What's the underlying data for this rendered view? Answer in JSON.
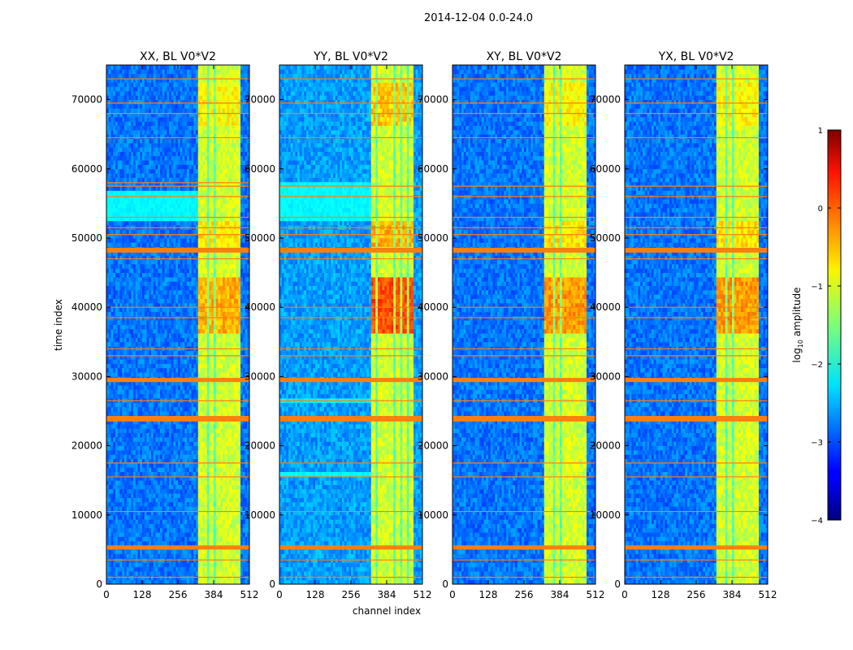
{
  "figure_title": "2014-12-04 0.0-24.0",
  "chart_data": [
    {
      "type": "heatmap",
      "title": "XX, BL V0*V2",
      "xlabel": "channel index",
      "ylabel": "time index",
      "xlim": [
        0,
        512
      ],
      "ylim": [
        0,
        75000
      ],
      "xticks": [
        0,
        128,
        256,
        384,
        512
      ],
      "yticks": [
        0,
        10000,
        20000,
        30000,
        40000,
        50000,
        60000,
        70000
      ],
      "baseline": -2.8,
      "active_band": [
        325,
        480
      ],
      "band_stripes": [
        [
          325,
          340
        ],
        [
          348,
          362
        ],
        [
          368,
          386
        ],
        [
          392,
          408
        ],
        [
          412,
          428
        ],
        [
          436,
          452
        ],
        [
          460,
          478
        ]
      ],
      "rfi_bands": [
        [
          5000,
          5600
        ],
        [
          23500,
          24300
        ],
        [
          29200,
          29800
        ],
        [
          47900,
          48600
        ]
      ],
      "rfi_lines": [
        1000,
        3500,
        10500,
        15500,
        17500,
        26500,
        33000,
        34000,
        38500,
        40000,
        47000,
        50500,
        51500,
        53000,
        56000,
        57500,
        58000,
        64500,
        68000,
        69500,
        73000
      ],
      "dim_bands": [
        [
          52500,
          57000
        ]
      ],
      "hot_bands": [
        [
          36000,
          44500,
          0.5
        ],
        [
          49000,
          52500,
          0.3
        ],
        [
          66000,
          72500,
          0.2
        ]
      ]
    },
    {
      "type": "heatmap",
      "title": "YY, BL V0*V2",
      "xlabel": "channel index",
      "ylabel": "",
      "xlim": [
        0,
        512
      ],
      "ylim": [
        0,
        75000
      ],
      "xticks": [
        0,
        128,
        256,
        384,
        512
      ],
      "yticks": [
        0,
        10000,
        20000,
        30000,
        40000,
        50000,
        60000,
        70000
      ],
      "baseline": -2.6,
      "active_band": [
        325,
        480
      ],
      "band_stripes": [
        [
          325,
          342
        ],
        [
          350,
          364
        ],
        [
          370,
          388
        ],
        [
          394,
          410
        ],
        [
          414,
          430
        ],
        [
          438,
          454
        ],
        [
          462,
          478
        ]
      ],
      "rfi_bands": [
        [
          5000,
          5600
        ],
        [
          23500,
          24300
        ],
        [
          29200,
          29800
        ],
        [
          47900,
          48600
        ]
      ],
      "rfi_lines": [
        1000,
        3500,
        10500,
        15500,
        17500,
        26500,
        33000,
        34000,
        38500,
        40000,
        47000,
        50500,
        51500,
        53000,
        56000,
        57500,
        64500,
        68000,
        69500,
        73000
      ],
      "dim_bands": [
        [
          52500,
          58000
        ],
        [
          26000,
          27000
        ],
        [
          15500,
          16500
        ]
      ],
      "hot_bands": [
        [
          36000,
          44500,
          0.9
        ],
        [
          49000,
          52500,
          0.5
        ],
        [
          66000,
          72500,
          0.4
        ]
      ]
    },
    {
      "type": "heatmap",
      "title": "XY, BL V0*V2",
      "xlabel": "",
      "ylabel": "",
      "xlim": [
        0,
        512
      ],
      "ylim": [
        0,
        75000
      ],
      "xticks": [
        0,
        128,
        256,
        384,
        512
      ],
      "yticks": [
        0,
        10000,
        20000,
        30000,
        40000,
        50000,
        60000,
        70000
      ],
      "baseline": -2.8,
      "active_band": [
        325,
        480
      ],
      "band_stripes": [
        [
          325,
          340
        ],
        [
          348,
          362
        ],
        [
          368,
          386
        ],
        [
          392,
          408
        ],
        [
          412,
          428
        ],
        [
          436,
          452
        ],
        [
          460,
          478
        ]
      ],
      "rfi_bands": [
        [
          5000,
          5600
        ],
        [
          23500,
          24300
        ],
        [
          29200,
          29800
        ],
        [
          47900,
          48600
        ]
      ],
      "rfi_lines": [
        1000,
        3500,
        10500,
        15500,
        17500,
        26500,
        33000,
        34000,
        38500,
        40000,
        47000,
        50500,
        51500,
        53000,
        56000,
        57500,
        64500,
        68000,
        69500,
        73000
      ],
      "dim_bands": [],
      "hot_bands": [
        [
          36000,
          44500,
          0.6
        ],
        [
          49000,
          52500,
          0.3
        ],
        [
          66000,
          72500,
          0.2
        ]
      ]
    },
    {
      "type": "heatmap",
      "title": "YX, BL V0*V2",
      "xlabel": "",
      "ylabel": "",
      "xlim": [
        0,
        512
      ],
      "ylim": [
        0,
        75000
      ],
      "xticks": [
        0,
        128,
        256,
        384,
        512
      ],
      "yticks": [
        0,
        10000,
        20000,
        30000,
        40000,
        50000,
        60000,
        70000
      ],
      "baseline": -2.8,
      "active_band": [
        325,
        480
      ],
      "band_stripes": [
        [
          325,
          340
        ],
        [
          348,
          362
        ],
        [
          368,
          386
        ],
        [
          392,
          408
        ],
        [
          412,
          428
        ],
        [
          436,
          452
        ],
        [
          460,
          478
        ]
      ],
      "rfi_bands": [
        [
          5000,
          5600
        ],
        [
          23500,
          24300
        ],
        [
          29200,
          29800
        ],
        [
          47900,
          48600
        ]
      ],
      "rfi_lines": [
        1000,
        3500,
        10500,
        15500,
        17500,
        26500,
        33000,
        34000,
        38500,
        40000,
        47000,
        50500,
        51500,
        53000,
        56000,
        57500,
        64500,
        68000,
        69500,
        73000
      ],
      "dim_bands": [],
      "hot_bands": [
        [
          36000,
          44500,
          0.6
        ],
        [
          49000,
          52500,
          0.3
        ],
        [
          66000,
          72500,
          0.2
        ]
      ]
    }
  ],
  "colorbar": {
    "label_prefix": "log",
    "label_sub": "10",
    "label_suffix": " amplitude",
    "range": [
      -4,
      1
    ],
    "ticks": [
      1,
      0,
      -1,
      -2,
      -3,
      -4
    ],
    "tick_labels": [
      "1",
      "0",
      "−1",
      "−2",
      "−3",
      "−4"
    ],
    "colormap": "jet"
  },
  "colors": {
    "rfi_flag": "#ff7f0e",
    "axis": "#000000",
    "background": "#ffffff"
  }
}
